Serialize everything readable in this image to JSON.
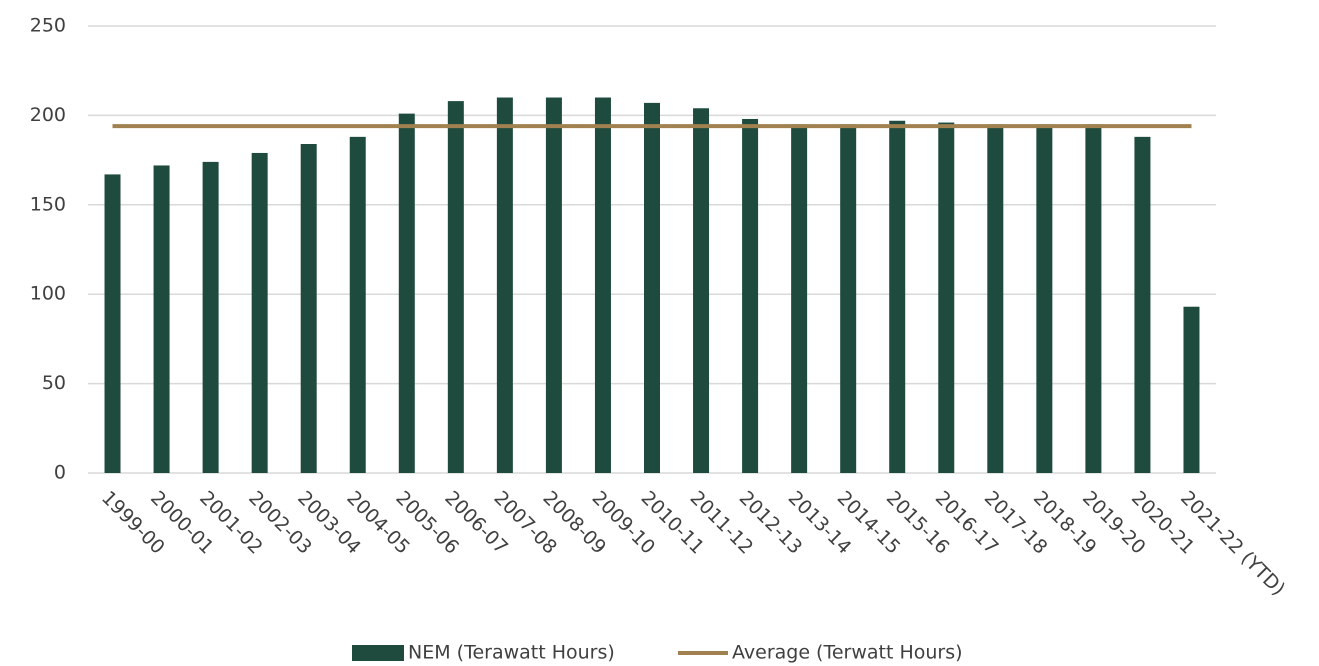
{
  "chart_data": {
    "type": "bar",
    "categories": [
      "1999-00",
      "2000-01",
      "2001-02",
      "2002-03",
      "2003-04",
      "2004-05",
      "2005-06",
      "2006-07",
      "2007-08",
      "2008-09",
      "2009-10",
      "2010-11",
      "2011-12",
      "2012-13",
      "2013-14",
      "2014-15",
      "2015-16",
      "2016-17",
      "2017-18",
      "2018-19",
      "2019-20",
      "2020-21",
      "2021-22 (YTD)"
    ],
    "series": [
      {
        "name": "NEM (Terawatt Hours)",
        "type": "bar",
        "color": "#1f4b3e",
        "values": [
          167,
          172,
          174,
          179,
          184,
          188,
          201,
          208,
          210,
          210,
          210,
          207,
          204,
          198,
          195,
          195,
          197,
          196,
          195,
          195,
          195,
          188,
          93
        ]
      },
      {
        "name": "Average (Terwatt Hours)",
        "type": "line",
        "color": "#a0814f",
        "values": [
          194,
          194,
          194,
          194,
          194,
          194,
          194,
          194,
          194,
          194,
          194,
          194,
          194,
          194,
          194,
          194,
          194,
          194,
          194,
          194,
          194,
          194,
          194
        ]
      }
    ],
    "ylim": [
      0,
      250
    ],
    "yticks": [
      0,
      50,
      100,
      150,
      200,
      250
    ],
    "grid": true,
    "legend": "bottom"
  }
}
